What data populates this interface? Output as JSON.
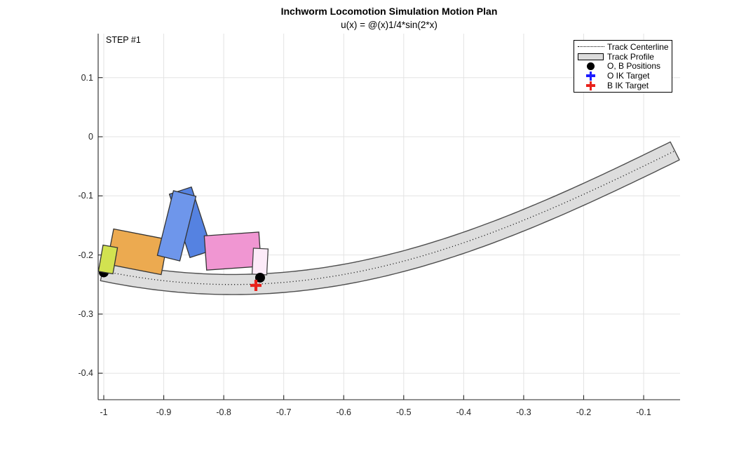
{
  "title": "Inchworm Locomotion Simulation Motion Plan",
  "subtitle": "u(x) = @(x)1/4*sin(2*x)",
  "step_label": "STEP #1",
  "legend": {
    "items": [
      {
        "label": "Track Centerline",
        "marker": "dotted-line",
        "color": "#000000"
      },
      {
        "label": "Track Profile",
        "marker": "patch",
        "color": "#dcdcdc",
        "edge": "#000000"
      },
      {
        "label": "O, B Positions",
        "marker": "dot",
        "color": "#000000"
      },
      {
        "label": "O IK Target",
        "marker": "plus",
        "color": "#1c1cff"
      },
      {
        "label": "B IK Target",
        "marker": "plus",
        "color": "#e8221c"
      }
    ]
  },
  "chart_data": {
    "type": "line",
    "title": "Inchworm Locomotion Simulation Motion Plan",
    "subtitle": "u(x) = @(x)1/4*sin(2*x)",
    "annotation": "STEP #1",
    "axes": {
      "xlim": [
        -1.009,
        -0.04
      ],
      "ylim": [
        -0.441,
        0.173
      ],
      "x_ticks": [
        -1,
        -0.9,
        -0.8,
        -0.7,
        -0.6,
        -0.5,
        -0.4,
        -0.3,
        -0.2,
        -0.1
      ],
      "x_tick_labels": [
        "-1",
        "-0.9",
        "-0.8",
        "-0.7",
        "-0.6",
        "-0.5",
        "-0.4",
        "-0.3",
        "-0.2",
        "-0.1"
      ],
      "y_ticks": [
        0.1,
        0,
        -0.1,
        -0.2,
        -0.3,
        -0.4
      ],
      "y_tick_labels": [
        "0.1",
        "0",
        "-0.1",
        "-0.2",
        "-0.3",
        "-0.4"
      ],
      "grid": true,
      "grid_color": "#e3e3e3",
      "axis_color": "#262626"
    },
    "track": {
      "function": "u(x) = 1/4*sin(2*x)",
      "amplitude": 0.25,
      "frequency": 2,
      "x_start": -1.002,
      "x_end": -0.048,
      "half_width": 0.017,
      "fill": "#d9d9d9",
      "fill_opacity": 0.9,
      "edge": "#4f4f4f",
      "centerline_color": "#000000"
    },
    "robot_links": [
      {
        "name": "rear-link-orange",
        "x": -0.9439,
        "y": -0.1946,
        "width": 0.0923,
        "height": 0.0605,
        "angle_deg": 11,
        "fill": "#ecaa50",
        "edge": "#333333"
      },
      {
        "name": "rear-foot-yellow",
        "x": -0.993,
        "y": -0.2076,
        "width": 0.0245,
        "height": 0.0451,
        "angle_deg": 10,
        "fill": "#d2e250",
        "edge": "#333333"
      },
      {
        "name": "mid-link-right-blue",
        "x": -0.8551,
        "y": -0.1447,
        "width": 0.0386,
        "height": 0.1127,
        "angle_deg": -18,
        "fill": "#5582e1",
        "edge": "#333333"
      },
      {
        "name": "mid-link-left-blue",
        "x": -0.8785,
        "y": -0.1507,
        "width": 0.0386,
        "height": 0.1127,
        "angle_deg": 14,
        "fill": "#6e96eb",
        "edge": "#333333"
      },
      {
        "name": "front-link-pink",
        "x": -0.785,
        "y": -0.1934,
        "width": 0.0912,
        "height": 0.0581,
        "angle_deg": -4,
        "fill": "#f096d2",
        "edge": "#333333"
      },
      {
        "name": "front-foot-pale",
        "x": -0.7394,
        "y": -0.2111,
        "width": 0.0245,
        "height": 0.0439,
        "angle_deg": 3,
        "fill": "#fcebf8",
        "edge": "#444444"
      }
    ],
    "markers": [
      {
        "name": "O-position-dot",
        "type": "dot",
        "x": -1.0,
        "y": -0.2295,
        "color": "#000000",
        "layer": "below-robot"
      },
      {
        "name": "B-position-dot",
        "type": "dot",
        "x": -0.7394,
        "y": -0.2384,
        "color": "#000000",
        "layer": "top"
      },
      {
        "name": "B-ik-target",
        "type": "plus",
        "x": -0.7464,
        "y": -0.2515,
        "color": "#e8221c",
        "layer": "top"
      }
    ]
  }
}
